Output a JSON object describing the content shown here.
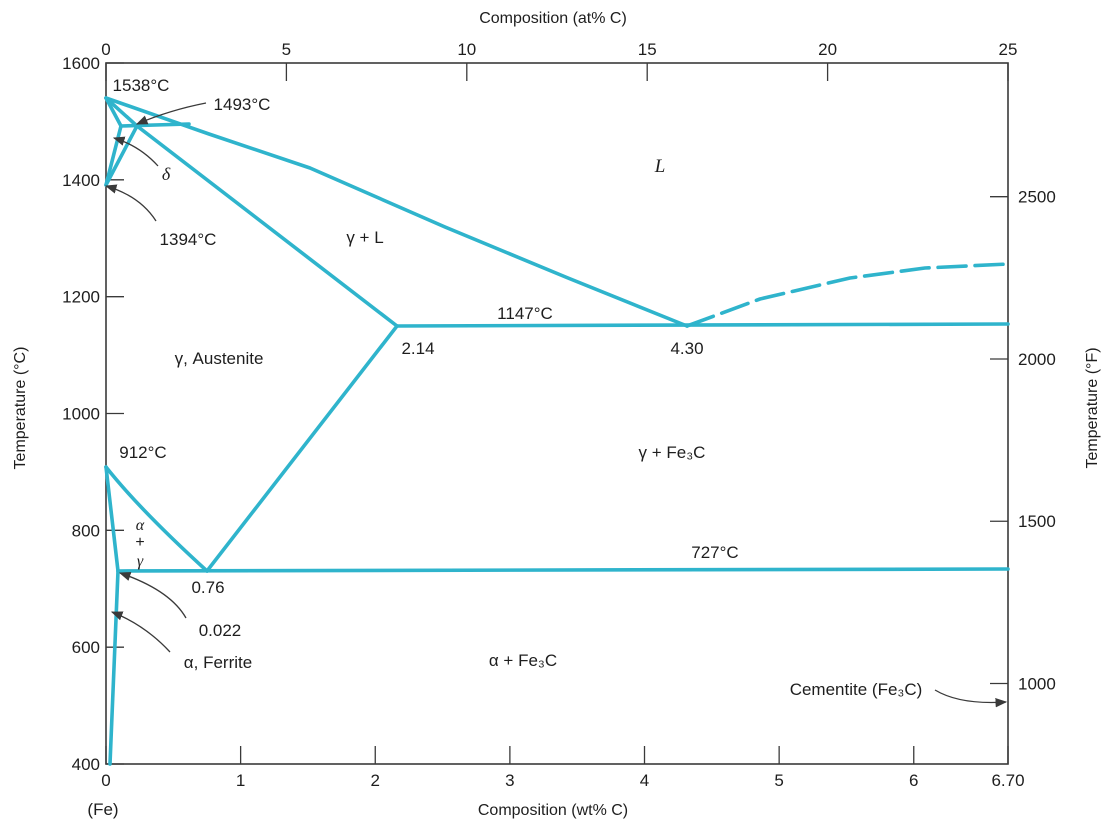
{
  "colors": {
    "phase_line": "#2fb4cc",
    "frame": "#3a3a3a",
    "text": "#1e1e1e",
    "arrow": "#3a3a3a"
  },
  "axes": {
    "top_title": "Composition (at% C)",
    "bottom_title": "Composition (wt% C)",
    "left_title": "Temperature (°C)",
    "right_title": "Temperature (°F)",
    "top_ticks": [
      {
        "value": 0,
        "label": "0"
      },
      {
        "value": 5,
        "label": "5"
      },
      {
        "value": 10,
        "label": "10"
      },
      {
        "value": 15,
        "label": "15"
      },
      {
        "value": 20,
        "label": "20"
      },
      {
        "value": 25,
        "label": "25"
      }
    ],
    "bottom_ticks": [
      {
        "value": 0,
        "label": "0"
      },
      {
        "value": 1,
        "label": "1"
      },
      {
        "value": 2,
        "label": "2"
      },
      {
        "value": 3,
        "label": "3"
      },
      {
        "value": 4,
        "label": "4"
      },
      {
        "value": 5,
        "label": "5"
      },
      {
        "value": 6,
        "label": "6"
      },
      {
        "value": 6.7,
        "label": "6.70"
      }
    ],
    "left_ticks": [
      {
        "value": 400,
        "label": "400"
      },
      {
        "value": 600,
        "label": "600"
      },
      {
        "value": 800,
        "label": "800"
      },
      {
        "value": 1000,
        "label": "1000"
      },
      {
        "value": 1200,
        "label": "1200"
      },
      {
        "value": 1400,
        "label": "1400"
      },
      {
        "value": 1600,
        "label": "1600"
      }
    ],
    "right_ticks": [
      {
        "value": 1000,
        "label": "1000"
      },
      {
        "value": 1500,
        "label": "1500"
      },
      {
        "value": 2000,
        "label": "2000"
      },
      {
        "value": 2500,
        "label": "2500"
      }
    ],
    "fe_label": "(Fe)"
  },
  "phase_labels": {
    "liquid": "L",
    "gamma_liquid": "γ + L",
    "austenite": "γ, Austenite",
    "gamma_cementite": "γ + Fe₃C",
    "alpha_cementite": "α + Fe₃C",
    "delta": "δ",
    "alpha_gamma_alpha": "α",
    "alpha_gamma_plus": "+",
    "alpha_gamma_gamma": "γ",
    "ferrite": "α, Ferrite",
    "cementite": "Cementite (Fe₃C)"
  },
  "point_labels": {
    "t1538": "1538°C",
    "t1493": "1493°C",
    "t1394": "1394°C",
    "t1147": "1147°C",
    "c214": "2.14",
    "c430": "4.30",
    "t912": "912°C",
    "t727": "727°C",
    "c076": "0.76",
    "c0022": "0.022"
  }
}
